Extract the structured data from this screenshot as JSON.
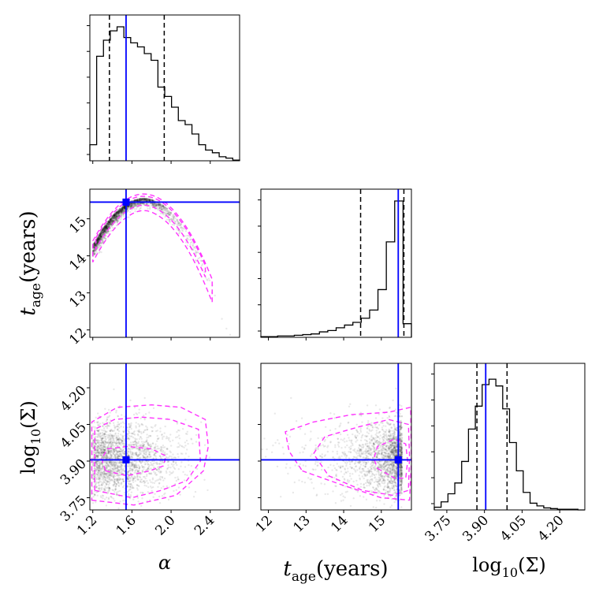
{
  "chart_data": {
    "type": "corner",
    "parameters": [
      {
        "key": "alpha",
        "symbol": "α",
        "range": [
          1.17,
          2.7
        ],
        "ticks": [
          1.2,
          1.6,
          2.0,
          2.4
        ],
        "tick_labels": [
          "1.2",
          "1.6",
          "2.0",
          "2.4"
        ],
        "truth": 1.54,
        "quantiles": [
          1.37,
          1.54,
          1.93
        ]
      },
      {
        "key": "t_age",
        "symbol": "t",
        "subscript": "age",
        "unit": "(years)",
        "range": [
          11.8,
          15.8
        ],
        "ticks": [
          12,
          13,
          14,
          15
        ],
        "tick_labels": [
          "12",
          "13",
          "14",
          "15"
        ],
        "truth": 15.45,
        "quantiles": [
          14.45,
          15.45,
          15.6
        ]
      },
      {
        "key": "log_sigma",
        "prefix": "log",
        "subscript": "10",
        "argument": "(Σ)",
        "range": [
          3.7,
          4.3
        ],
        "ticks": [
          3.75,
          3.9,
          4.05,
          4.2
        ],
        "tick_labels": [
          "3.75",
          "3.90",
          "4.05",
          "4.20"
        ],
        "truth": 3.905,
        "quantiles": [
          3.87,
          3.905,
          3.99
        ]
      }
    ],
    "histograms": {
      "alpha": [
        0.12,
        0.78,
        0.9,
        0.97,
        1.0,
        0.92,
        0.88,
        0.85,
        0.8,
        0.75,
        0.55,
        0.48,
        0.4,
        0.3,
        0.27,
        0.2,
        0.12,
        0.08,
        0.06,
        0.03,
        0.02,
        0.005
      ],
      "t_age": [
        0.005,
        0.005,
        0.01,
        0.01,
        0.015,
        0.02,
        0.025,
        0.04,
        0.05,
        0.07,
        0.09,
        0.11,
        0.14,
        0.2,
        0.35,
        0.7,
        1.0,
        0.1
      ],
      "log_sigma": [
        0.02,
        0.06,
        0.12,
        0.2,
        0.36,
        0.6,
        0.77,
        0.93,
        0.97,
        0.92,
        0.75,
        0.5,
        0.29,
        0.13,
        0.05,
        0.03,
        0.015,
        0.01,
        0.005,
        0.005,
        0.005,
        0.0
      ]
    },
    "colors": {
      "truth": "#0000ff",
      "contour": "#ff33ff",
      "hist": "#000000",
      "quantile": "#000000",
      "scatter": "#000000"
    }
  }
}
